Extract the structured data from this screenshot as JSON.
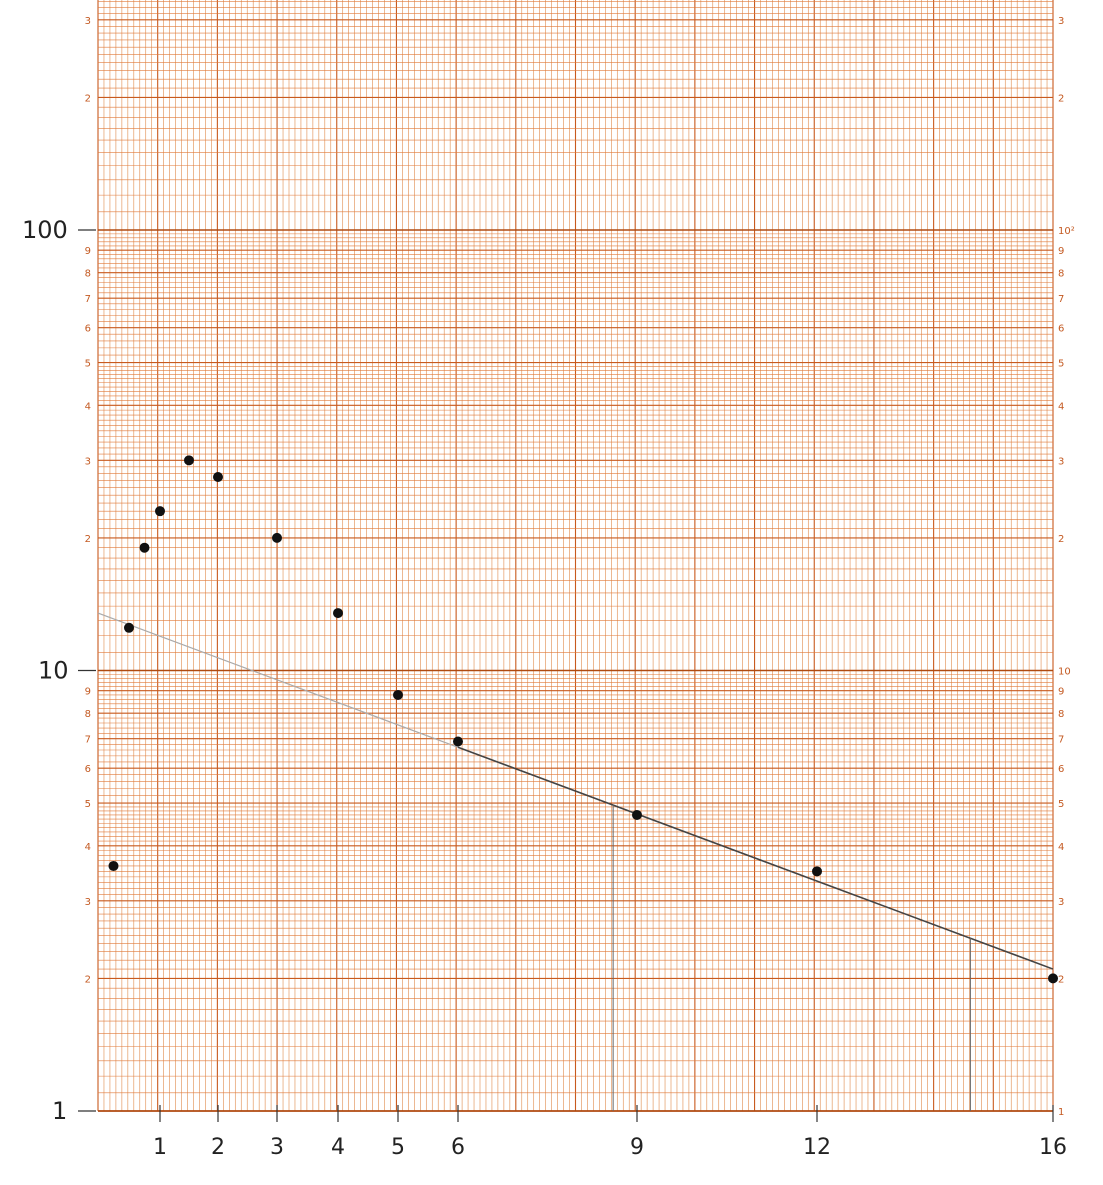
{
  "chart_data": {
    "type": "scatter",
    "title": "",
    "xlabel": "",
    "ylabel": "",
    "y_scale": "log",
    "ylim": [
      1,
      350
    ],
    "xlim": [
      0,
      16
    ],
    "grid": true,
    "y_printed_ticks_left": [
      "3",
      "2",
      "9",
      "8",
      "7",
      "6",
      "5",
      "4",
      "3",
      "2",
      "9",
      "8",
      "7",
      "6",
      "5",
      "4",
      "3",
      "2"
    ],
    "y_printed_ticks_right": [
      "3",
      "2",
      "10²",
      "9",
      "8",
      "7",
      "6",
      "5",
      "4",
      "3",
      "2",
      "10",
      "9",
      "8",
      "7",
      "6",
      "5",
      "4",
      "3",
      "2",
      "1"
    ],
    "y_hand_labels": [
      "100",
      "10",
      "1"
    ],
    "x_hand_labels": [
      "1",
      "2",
      "3",
      "4",
      "5",
      "6",
      "9",
      "12",
      "16"
    ],
    "points": [
      {
        "x": 0.25,
        "y": 3.6
      },
      {
        "x": 0.5,
        "y": 12.5
      },
      {
        "x": 0.75,
        "y": 19
      },
      {
        "x": 1,
        "y": 23
      },
      {
        "x": 1.5,
        "y": 30
      },
      {
        "x": 2,
        "y": 27.5
      },
      {
        "x": 3,
        "y": 20
      },
      {
        "x": 4,
        "y": 13.5
      },
      {
        "x": 5,
        "y": 8.8
      },
      {
        "x": 6,
        "y": 6.9
      },
      {
        "x": 9,
        "y": 4.7
      },
      {
        "x": 12,
        "y": 3.5
      },
      {
        "x": 16,
        "y": 2.0
      }
    ],
    "fit_line": {
      "x": [
        0,
        16
      ],
      "y": [
        13.5,
        2.1
      ]
    },
    "drop_lines_x": [
      8.6,
      14.6
    ]
  }
}
